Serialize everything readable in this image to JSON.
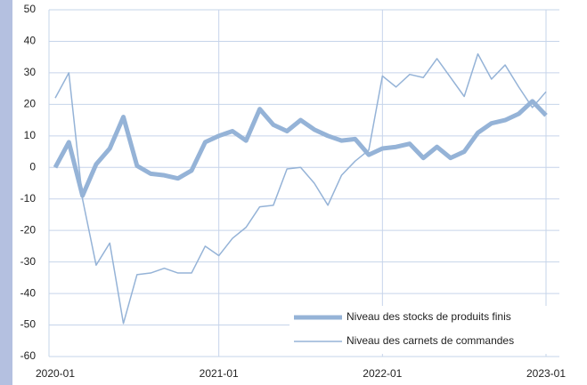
{
  "chart_data": {
    "type": "line",
    "categories": [
      "2020-01",
      null,
      null,
      null,
      null,
      null,
      null,
      null,
      null,
      null,
      null,
      null,
      "2021-01",
      null,
      null,
      null,
      null,
      null,
      null,
      null,
      null,
      null,
      null,
      null,
      "2022-01",
      null,
      null,
      null,
      null,
      null,
      null,
      null,
      null,
      null,
      null,
      null,
      "2023-01"
    ],
    "series": [
      {
        "name": "Niveau des stocks de produits finis",
        "color": "#95b3d7",
        "width": 5,
        "values": [
          0,
          8,
          -9,
          1,
          6,
          16,
          0.5,
          -2,
          -2.5,
          -3.5,
          -1,
          8,
          10,
          11.5,
          8.5,
          18.5,
          13.5,
          11.5,
          15,
          12,
          10,
          8.5,
          9,
          4,
          6,
          6.5,
          7.5,
          3,
          6.5,
          3,
          5,
          11,
          14,
          15,
          17,
          21,
          16.5
        ]
      },
      {
        "name": "Niveau des carnets de commandes",
        "color": "#95b3d7",
        "width": 1.5,
        "values": [
          22,
          30,
          -10,
          -31,
          -24,
          -49.5,
          -34,
          -33.5,
          -32,
          -33.5,
          -33.5,
          -25,
          -28,
          -22.5,
          -19,
          -12.5,
          -12,
          -0.5,
          0,
          -5,
          -12,
          -2.5,
          2,
          5.5,
          29,
          25.5,
          29.5,
          28.5,
          34.5,
          28.5,
          22.5,
          36,
          28,
          32.5,
          25.5,
          19,
          24
        ]
      }
    ],
    "ylim": [
      -60,
      50
    ],
    "yticks": [
      -60,
      -50,
      -40,
      -30,
      -20,
      -10,
      0,
      10,
      20,
      30,
      40,
      50
    ],
    "grid": true,
    "legend": "lower-right"
  }
}
